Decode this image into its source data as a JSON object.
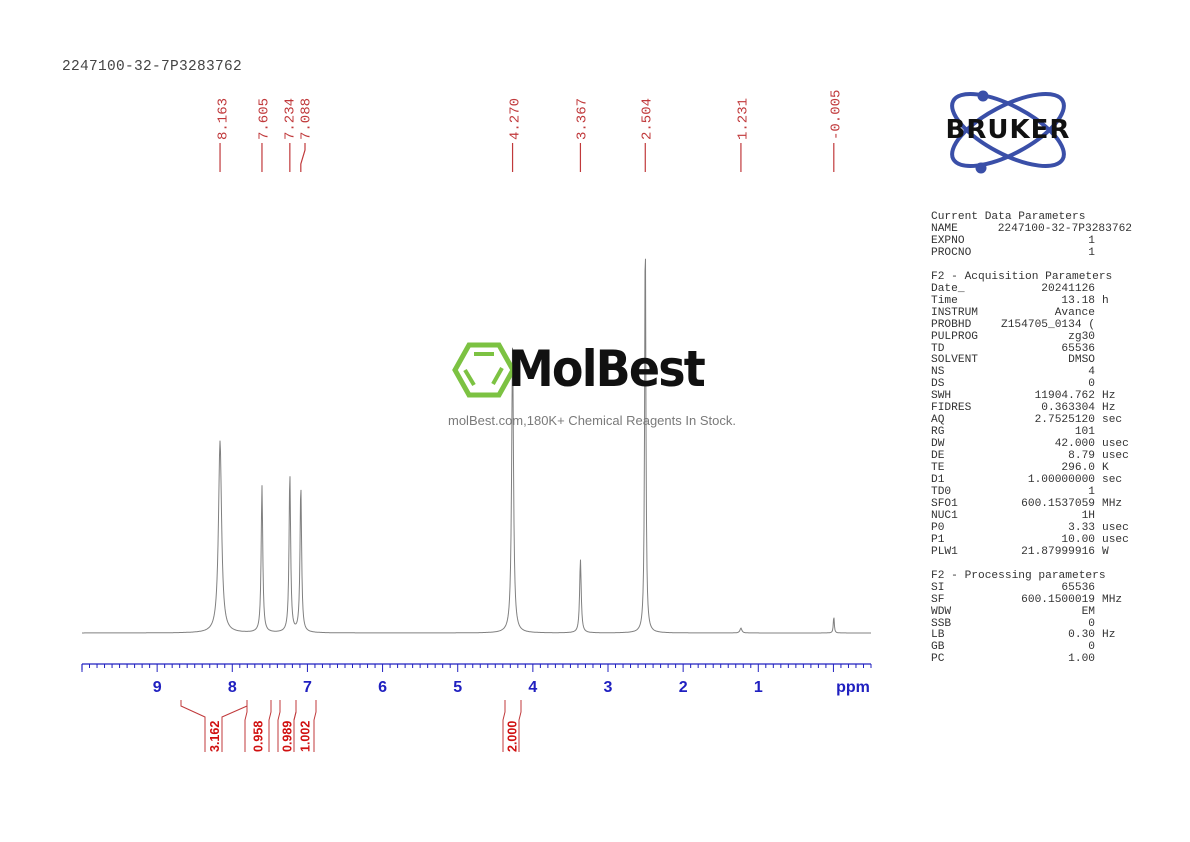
{
  "header": {
    "sample_title": "2247100-32-7P3283762"
  },
  "logo": {
    "brand": "BRUKER",
    "colors": {
      "orbit": "#3a4fa8",
      "text": "#111111"
    }
  },
  "watermark": {
    "brand": "MolBest",
    "tagline": "molBest.com,180K+ Chemical Reagents In Stock.",
    "icon_color": "#7cc242"
  },
  "parameters": {
    "current": {
      "heading": "Current Data Parameters",
      "rows": [
        {
          "key": "NAME",
          "value": "2247100-32-7P3283762",
          "unit": ""
        },
        {
          "key": "EXPNO",
          "value": "1",
          "unit": ""
        },
        {
          "key": "PROCNO",
          "value": "1",
          "unit": ""
        }
      ]
    },
    "acquisition": {
      "heading": "F2 - Acquisition Parameters",
      "rows": [
        {
          "key": "Date_",
          "value": "20241126",
          "unit": ""
        },
        {
          "key": "Time",
          "value": "13.18",
          "unit": "h"
        },
        {
          "key": "INSTRUM",
          "value": "Avance",
          "unit": ""
        },
        {
          "key": "PROBHD",
          "value": "Z154705_0134 (",
          "unit": ""
        },
        {
          "key": "PULPROG",
          "value": "zg30",
          "unit": ""
        },
        {
          "key": "TD",
          "value": "65536",
          "unit": ""
        },
        {
          "key": "SOLVENT",
          "value": "DMSO",
          "unit": ""
        },
        {
          "key": "NS",
          "value": "4",
          "unit": ""
        },
        {
          "key": "DS",
          "value": "0",
          "unit": ""
        },
        {
          "key": "SWH",
          "value": "11904.762",
          "unit": "Hz"
        },
        {
          "key": "FIDRES",
          "value": "0.363304",
          "unit": "Hz"
        },
        {
          "key": "AQ",
          "value": "2.7525120",
          "unit": "sec"
        },
        {
          "key": "RG",
          "value": "101",
          "unit": ""
        },
        {
          "key": "DW",
          "value": "42.000",
          "unit": "usec"
        },
        {
          "key": "DE",
          "value": "8.79",
          "unit": "usec"
        },
        {
          "key": "TE",
          "value": "296.0",
          "unit": "K"
        },
        {
          "key": "D1",
          "value": "1.00000000",
          "unit": "sec"
        },
        {
          "key": "TD0",
          "value": "1",
          "unit": ""
        },
        {
          "key": "SFO1",
          "value": "600.1537059",
          "unit": "MHz"
        },
        {
          "key": "NUC1",
          "value": "1H",
          "unit": ""
        },
        {
          "key": "P0",
          "value": "3.33",
          "unit": "usec"
        },
        {
          "key": "P1",
          "value": "10.00",
          "unit": "usec"
        },
        {
          "key": "PLW1",
          "value": "21.87999916",
          "unit": "W"
        }
      ]
    },
    "processing": {
      "heading": "F2 - Processing parameters",
      "rows": [
        {
          "key": "SI",
          "value": "65536",
          "unit": ""
        },
        {
          "key": "SF",
          "value": "600.1500019",
          "unit": "MHz"
        },
        {
          "key": "WDW",
          "value": "EM",
          "unit": ""
        },
        {
          "key": "SSB",
          "value": "0",
          "unit": ""
        },
        {
          "key": "LB",
          "value": "0.30",
          "unit": "Hz"
        },
        {
          "key": "GB",
          "value": "0",
          "unit": ""
        },
        {
          "key": "PC",
          "value": "1.00",
          "unit": ""
        }
      ]
    }
  },
  "colors": {
    "spectrum": "#808080",
    "peak_label": "#c0393b",
    "integral": "#c0393b",
    "integral_text": "#d01010",
    "axis": "#2020c0"
  },
  "chart_data": {
    "type": "line",
    "title": "2247100-32-7P3283762",
    "xlabel": "ppm",
    "ylabel": "",
    "xlim": [
      10.0,
      -0.5
    ],
    "x_reversed": true,
    "grid": false,
    "legend": "none",
    "x_ticks": [
      9,
      8,
      7,
      6,
      5,
      4,
      3,
      2,
      1
    ],
    "x_tick_labels": [
      "9",
      "8",
      "7",
      "6",
      "5",
      "4",
      "3",
      "2",
      "1"
    ],
    "minor_tick_step": 0.1,
    "peaks": [
      {
        "ppm": 8.163,
        "label": "8.163",
        "rel_height": 0.47,
        "width": 0.05
      },
      {
        "ppm": 7.605,
        "label": "7.605",
        "rel_height": 0.36,
        "width": 0.025
      },
      {
        "ppm": 7.234,
        "label": "7.234",
        "rel_height": 0.39,
        "width": 0.025
      },
      {
        "ppm": 7.088,
        "label": "7.088",
        "rel_height": 0.36,
        "width": 0.025
      },
      {
        "ppm": 4.27,
        "label": "4.270",
        "rel_height": 0.7,
        "width": 0.03
      },
      {
        "ppm": 3.367,
        "label": "3.367",
        "rel_height": 0.18,
        "width": 0.025
      },
      {
        "ppm": 2.504,
        "label": "2.504",
        "rel_height": 1.0,
        "width": 0.02
      },
      {
        "ppm": 1.231,
        "label": "1.231",
        "rel_height": 0.012,
        "width": 0.03
      },
      {
        "ppm": -0.005,
        "label": "-0.005",
        "rel_height": 0.042,
        "width": 0.015
      }
    ],
    "integrals": [
      {
        "from": 8.65,
        "to": 7.82,
        "value": "3.162"
      },
      {
        "from": 7.82,
        "to": 7.5,
        "value": "0.958"
      },
      {
        "from": 7.37,
        "to": 7.18,
        "value": "0.989"
      },
      {
        "from": 7.18,
        "to": 6.98,
        "value": "1.002"
      },
      {
        "from": 4.37,
        "to": 4.17,
        "value": "2.000"
      }
    ]
  }
}
